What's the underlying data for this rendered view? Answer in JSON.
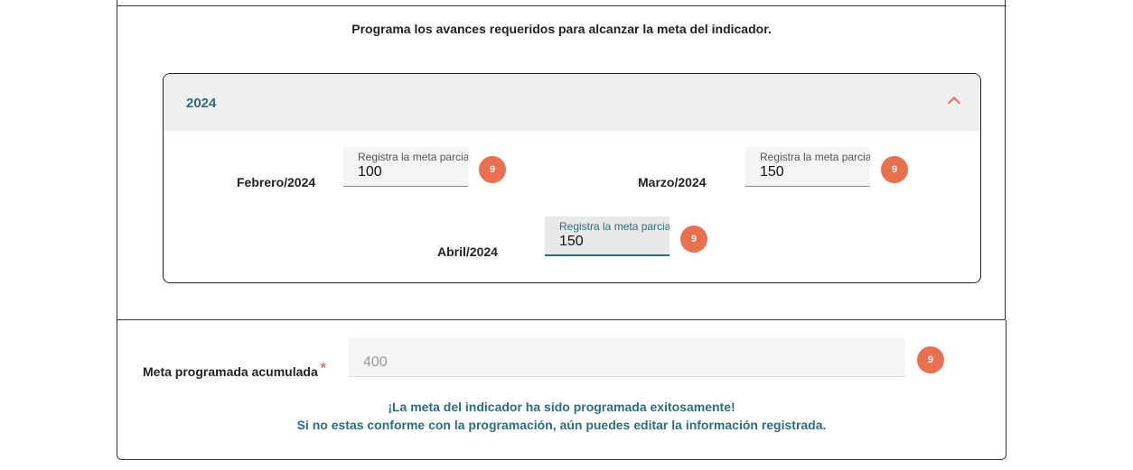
{
  "intro_text": "Programa los avances requeridos para alcanzar la meta del indicador.",
  "accordion": {
    "year": "2024",
    "months": [
      {
        "label": "Febrero/2024",
        "placeholder": "Registra la meta parcial",
        "value": "100",
        "badge": "9"
      },
      {
        "label": "Marzo/2024",
        "placeholder": "Registra la meta parcial",
        "value": "150",
        "badge": "9"
      },
      {
        "label": "Abril/2024",
        "placeholder": "Registra la meta parcial",
        "value": "150",
        "badge": "9"
      }
    ]
  },
  "cumulative": {
    "label": "Meta programada acumulada",
    "required_mark": "*",
    "value": "400",
    "badge": "9"
  },
  "success": {
    "line1": "¡La meta del indicador ha sido programada exitosamente!",
    "line2": "Si no estas conforme con la programación, aún puedes editar la información registrada."
  },
  "colors": {
    "accent": "#e8704f",
    "teal": "#2a6e7f"
  }
}
